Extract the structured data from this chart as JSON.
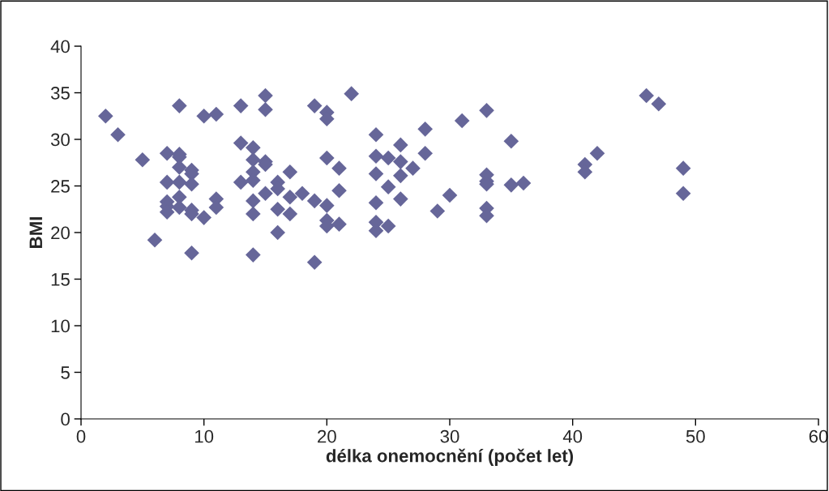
{
  "chart_data": {
    "type": "scatter",
    "xlabel": "délka onemocnění (počet let)",
    "ylabel": "BMI",
    "xlim": [
      0,
      60
    ],
    "xticks": [
      0,
      10,
      20,
      30,
      40,
      50,
      60
    ],
    "ylim": [
      0,
      40
    ],
    "yticks": [
      0,
      5,
      10,
      15,
      20,
      25,
      30,
      35,
      40
    ],
    "grid": false,
    "legend": false,
    "marker": "diamond",
    "series": [
      {
        "color": "#666699",
        "x": [
          2,
          3,
          5,
          6,
          7,
          7,
          7,
          7,
          7,
          8,
          8,
          8,
          8,
          8,
          8,
          8,
          9,
          9,
          9,
          9,
          9,
          9,
          10,
          10,
          11,
          11,
          11,
          13,
          13,
          13,
          14,
          14,
          14,
          14,
          14,
          14,
          14,
          15,
          15,
          15,
          15,
          15,
          16,
          16,
          16,
          16,
          17,
          17,
          17,
          18,
          19,
          19,
          19,
          20,
          20,
          20,
          20,
          20,
          20,
          21,
          21,
          21,
          22,
          24,
          24,
          24,
          24,
          24,
          24,
          25,
          25,
          25,
          26,
          26,
          26,
          26,
          27,
          28,
          28,
          29,
          30,
          31,
          33,
          33,
          33,
          33,
          33,
          33,
          35,
          35,
          36,
          41,
          41,
          42,
          46,
          47,
          49,
          49
        ],
        "values": [
          32.5,
          30.5,
          27.8,
          19.2,
          28.5,
          25.4,
          23.3,
          22.8,
          22.2,
          33.6,
          28.4,
          28.1,
          27,
          25.4,
          23.8,
          22.7,
          26.7,
          26.3,
          25.2,
          22.4,
          22,
          17.8,
          32.5,
          21.6,
          32.7,
          23.6,
          22.7,
          33.6,
          29.6,
          25.4,
          29.1,
          27.8,
          26.5,
          25.6,
          23.4,
          22,
          17.6,
          34.7,
          33.2,
          27.6,
          27.3,
          24.2,
          25.4,
          24.7,
          22.5,
          20,
          26.5,
          23.8,
          22,
          24.2,
          33.6,
          23.4,
          16.8,
          32.9,
          32.2,
          28,
          22.9,
          21.3,
          20.7,
          26.9,
          24.5,
          20.9,
          34.9,
          30.5,
          28.2,
          26.3,
          23.2,
          21.1,
          20.2,
          28,
          24.9,
          20.7,
          29.4,
          27.6,
          26.1,
          23.6,
          26.9,
          31.1,
          28.5,
          22.3,
          24,
          32,
          33.1,
          26.2,
          25.5,
          25.2,
          22.6,
          21.8,
          29.8,
          25.1,
          25.3,
          27.3,
          26.5,
          28.5,
          34.7,
          33.8,
          26.9,
          24.2
        ]
      }
    ]
  }
}
